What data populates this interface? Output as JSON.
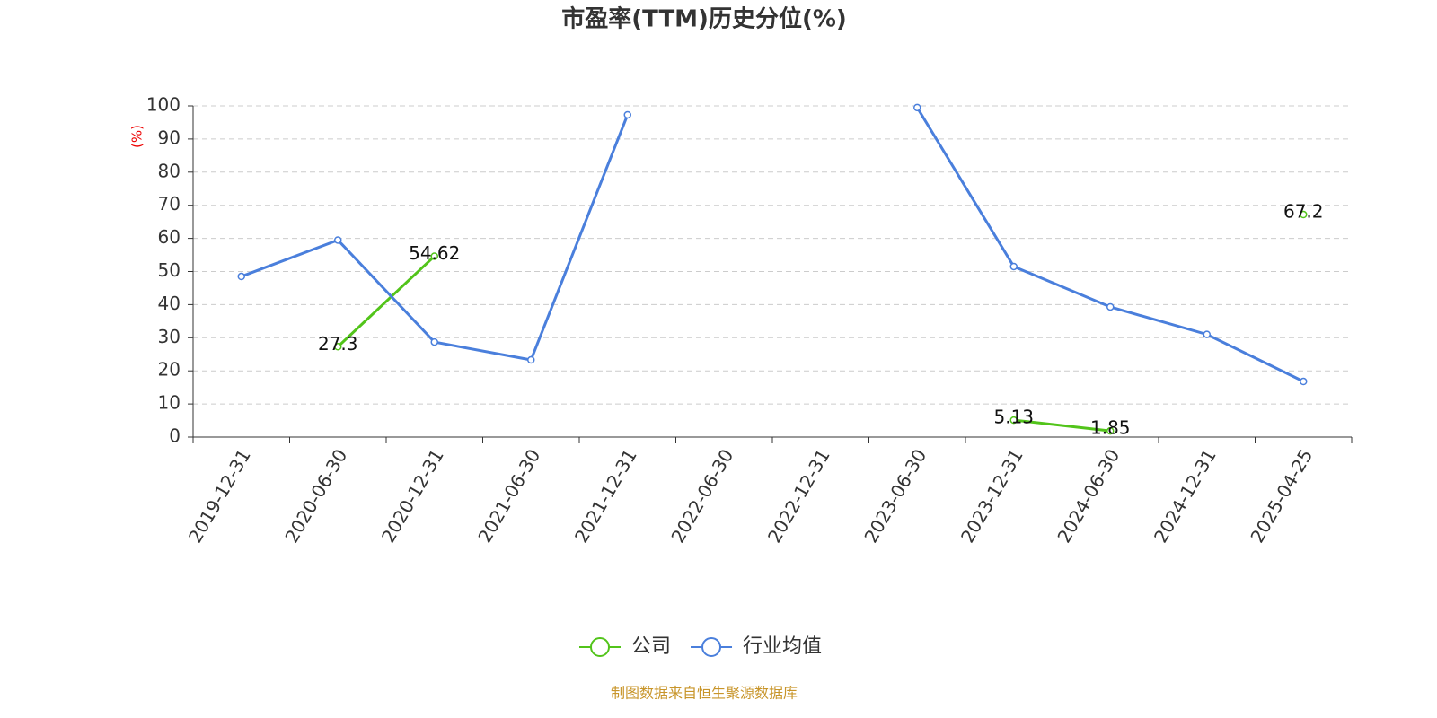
{
  "chart_data": {
    "type": "line",
    "title": "市盈率(TTM)历史分位(%)",
    "y_label": "(%)",
    "categories": [
      "2019-12-31",
      "2020-06-30",
      "2020-12-31",
      "2021-06-30",
      "2021-12-31",
      "2022-06-30",
      "2022-12-31",
      "2023-06-30",
      "2023-12-31",
      "2024-06-30",
      "2024-12-31",
      "2025-04-25"
    ],
    "series": [
      {
        "name": "公司",
        "color": "#52c41a",
        "values": [
          null,
          27.3,
          54.62,
          null,
          null,
          null,
          null,
          null,
          5.13,
          1.85,
          null,
          67.2
        ],
        "show_labels": true
      },
      {
        "name": "行业均值",
        "color": "#4a7fdc",
        "values": [
          48.5,
          59.5,
          28.7,
          23.3,
          97.3,
          null,
          null,
          99.5,
          51.5,
          39.3,
          31,
          16.8
        ],
        "show_labels": false
      }
    ],
    "ylim": [
      0,
      100
    ],
    "yticks": [
      0,
      10,
      20,
      30,
      40,
      50,
      60,
      70,
      80,
      90,
      100
    ],
    "grid": true,
    "legend": "bottom",
    "source": "制图数据来自恒生聚源数据库"
  }
}
